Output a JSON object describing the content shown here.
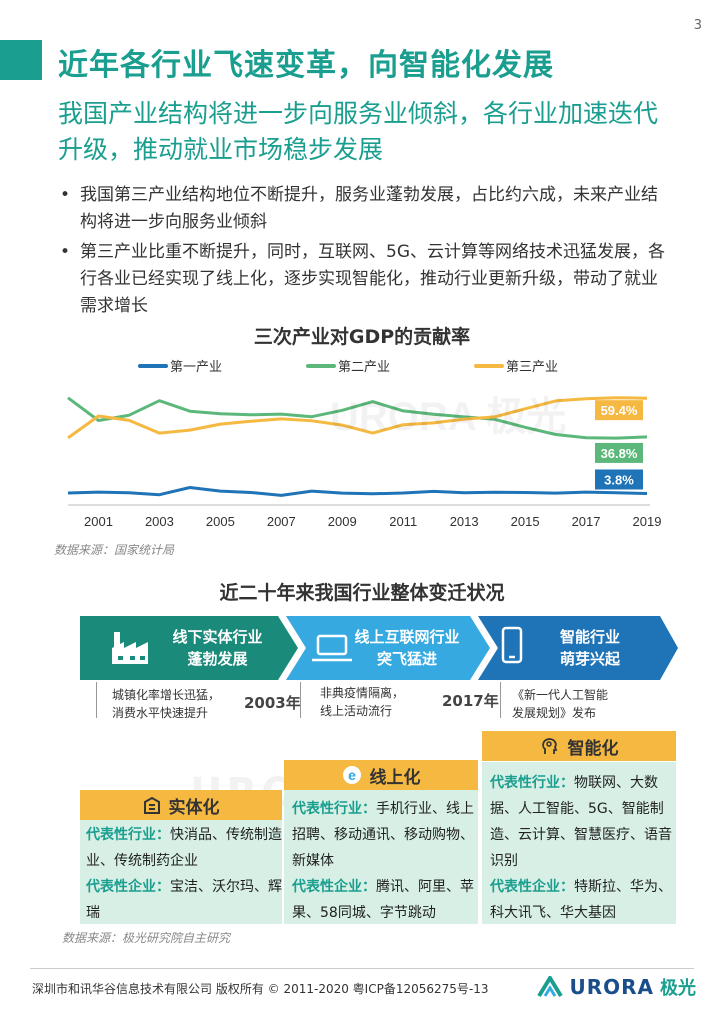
{
  "page_number": "3",
  "title": "近年各行业飞速变革，向智能化发展",
  "subtitle": "我国产业结构将进一步向服务业倾斜，各行业加速迭代升级，推动就业市场稳步发展",
  "bullets": [
    "我国第三产业结构地位不断提升，服务业蓬勃发展，占比约六成，未来产业结构将进一步向服务业倾斜",
    "第三产业比重不断提升，同时，互联网、5G、云计算等网络技术迅猛发展，各行各业已经实现了线上化，逐步实现智能化，推动行业更新升级，带动了就业需求增长"
  ],
  "chart_data": {
    "type": "line",
    "title": "三次产业对GDP的贡献率",
    "x": [
      2000,
      2001,
      2002,
      2003,
      2004,
      2005,
      2006,
      2007,
      2008,
      2009,
      2010,
      2011,
      2012,
      2013,
      2014,
      2015,
      2016,
      2017,
      2018,
      2019
    ],
    "x_tick_labels": [
      "2001",
      "2003",
      "2005",
      "2007",
      "2009",
      "2011",
      "2013",
      "2015",
      "2017",
      "2019"
    ],
    "series": [
      {
        "name": "第一产业",
        "color": "#1f73b7",
        "values": [
          4.1,
          4.6,
          4.2,
          3.1,
          7.3,
          5.2,
          4.4,
          2.7,
          5.2,
          4.0,
          3.6,
          4.1,
          5.0,
          4.2,
          4.5,
          4.4,
          4.0,
          4.6,
          4.2,
          3.8
        ],
        "end_label": "3.8%"
      },
      {
        "name": "第二产业",
        "color": "#5cb87a",
        "values": [
          59.6,
          46.4,
          49.4,
          57.9,
          51.8,
          50.3,
          49.7,
          50.1,
          48.6,
          52.3,
          57.4,
          52.0,
          50.0,
          48.5,
          47.1,
          42.4,
          38.2,
          36.3,
          36.1,
          36.8
        ],
        "end_label": "36.8%"
      },
      {
        "name": "第三产业",
        "color": "#f5b942",
        "values": [
          36.2,
          49.0,
          46.5,
          39.0,
          40.8,
          44.3,
          45.9,
          47.3,
          46.2,
          43.7,
          39.0,
          43.9,
          45.0,
          47.2,
          48.5,
          53.2,
          57.8,
          59.1,
          59.7,
          59.4
        ],
        "end_label": "59.4%"
      }
    ],
    "ylim": [
      0,
      70
    ],
    "source": "数据来源：国家统计局"
  },
  "section2": {
    "title": "近二十年来我国行业整体变迁状况",
    "stages": [
      {
        "label_line1": "线下实体行业",
        "label_line2": "蓬勃发展",
        "icon": "factory-icon",
        "color": "#1a8a7a"
      },
      {
        "label_line1": "线上互联网行业",
        "label_line2": "突飞猛进",
        "icon": "laptop-icon",
        "color": "#35a9e0"
      },
      {
        "label_line1": "智能行业",
        "label_line2": "萌芽兴起",
        "icon": "smartphone-icon",
        "color": "#1f73b7"
      }
    ],
    "notes": [
      {
        "line1": "城镇化率增长迅猛，",
        "line2": "消费水平快速提升"
      },
      {
        "line1": "非典疫情隔离，",
        "line2": "线上活动流行"
      },
      {
        "line1": "《新一代人工智能",
        "line2": "发展规划》发布"
      }
    ],
    "years": [
      "2003年",
      "2017年"
    ],
    "panels": [
      {
        "title": "实体化",
        "icon": "building-icon",
        "industry_key": "代表性行业：",
        "industry": "快消品、传统制造业、传统制药企业",
        "company_key": "代表性企业：",
        "company": "宝洁、沃尔玛、辉瑞"
      },
      {
        "title": "线上化",
        "icon": "internet-e-icon",
        "industry_key": "代表性行业：",
        "industry": "手机行业、线上招聘、移动通讯、移动购物、新媒体",
        "company_key": "代表性企业：",
        "company": "腾讯、阿里、苹果、58同城、字节跳动"
      },
      {
        "title": "智能化",
        "icon": "ai-head-icon",
        "industry_key": "代表性行业：",
        "industry": "物联网、大数据、人工智能、5G、智能制造、云计算、智慧医疗、语音识别",
        "company_key": "代表性企业：",
        "company": "特斯拉、华为、科大讯飞、华大基因"
      }
    ],
    "source": "数据来源：极光研究院自主研究"
  },
  "footer": {
    "copyright": "深圳市和讯华谷信息技术有限公司 版权所有 © 2011-2020 粤ICP备12056275号-13",
    "logo_word": "URORA",
    "logo_cn": "极光"
  },
  "watermark": "URORA 极光"
}
